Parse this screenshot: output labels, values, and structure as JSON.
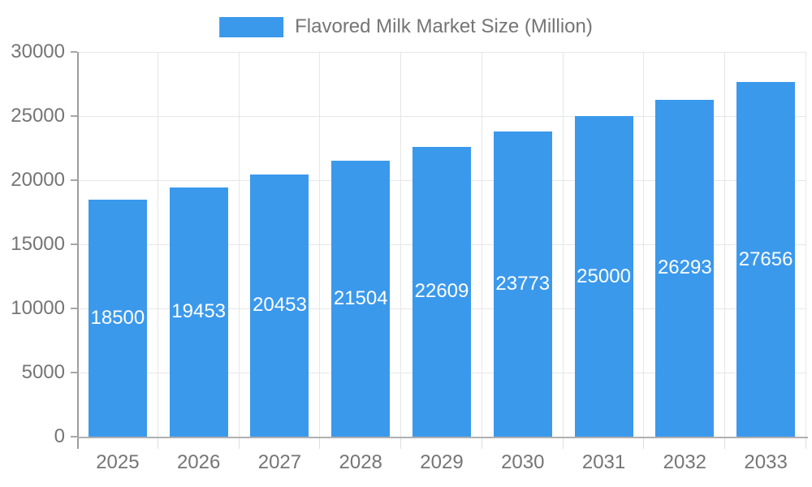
{
  "legend": {
    "label": "Flavored Milk Market Size (Million)"
  },
  "chart_data": {
    "type": "bar",
    "title": "Flavored Milk Market Size (Million)",
    "categories": [
      "2025",
      "2026",
      "2027",
      "2028",
      "2029",
      "2030",
      "2031",
      "2032",
      "2033"
    ],
    "values": [
      18500,
      19453,
      20453,
      21504,
      22609,
      23773,
      25000,
      26293,
      27656
    ],
    "series_name": "Flavored Milk Market Size (Million)",
    "xlabel": "",
    "ylabel": "",
    "ylim": [
      0,
      30000
    ],
    "yticks": [
      0,
      5000,
      10000,
      15000,
      20000,
      25000,
      30000
    ],
    "grid": true,
    "legend_position": "top-center",
    "value_label_position": "inside-middle"
  },
  "colors": {
    "bar": "#3B99EC",
    "grid": "#e6e6e6",
    "axis": "#9e9e9e",
    "tick_text": "#757575",
    "legend_text": "#757575",
    "value_label_text": "#ffffff"
  }
}
